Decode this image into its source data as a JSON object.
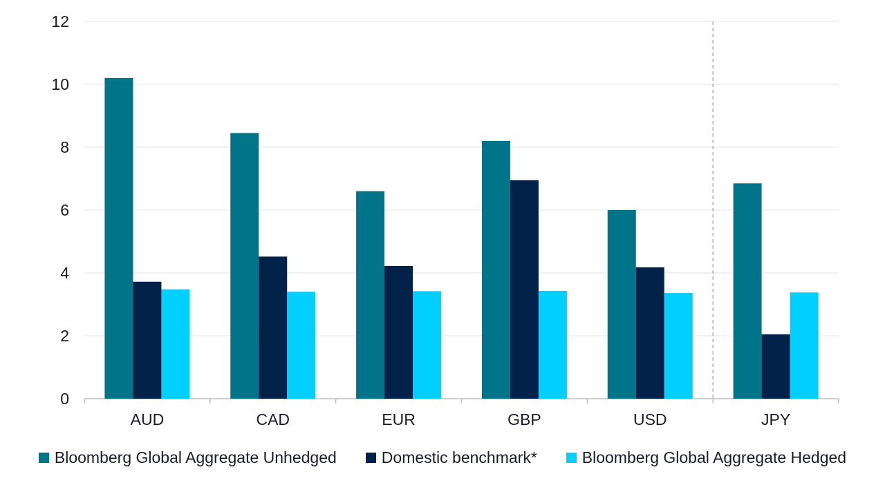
{
  "chart_data": {
    "type": "bar",
    "categories": [
      "AUD",
      "CAD",
      "EUR",
      "GBP",
      "USD",
      "JPY"
    ],
    "series": [
      {
        "name": "Bloomberg Global Aggregate Unhedged",
        "color": "#007589",
        "values": [
          10.2,
          8.45,
          6.6,
          8.2,
          6.0,
          6.85
        ]
      },
      {
        "name": "Domestic benchmark*",
        "color": "#03224a",
        "values": [
          3.72,
          4.52,
          4.22,
          6.95,
          4.18,
          2.05
        ]
      },
      {
        "name": "Bloomberg Global Aggregate Hedged",
        "color": "#00cfff",
        "values": [
          3.48,
          3.4,
          3.42,
          3.43,
          3.36,
          3.38
        ]
      }
    ],
    "yticks": [
      "0",
      "2",
      "4",
      "6",
      "8",
      "10",
      "12"
    ],
    "ylim": [
      0,
      12
    ],
    "grid": true,
    "legend_position": "bottom",
    "separator_before_category": "JPY"
  }
}
